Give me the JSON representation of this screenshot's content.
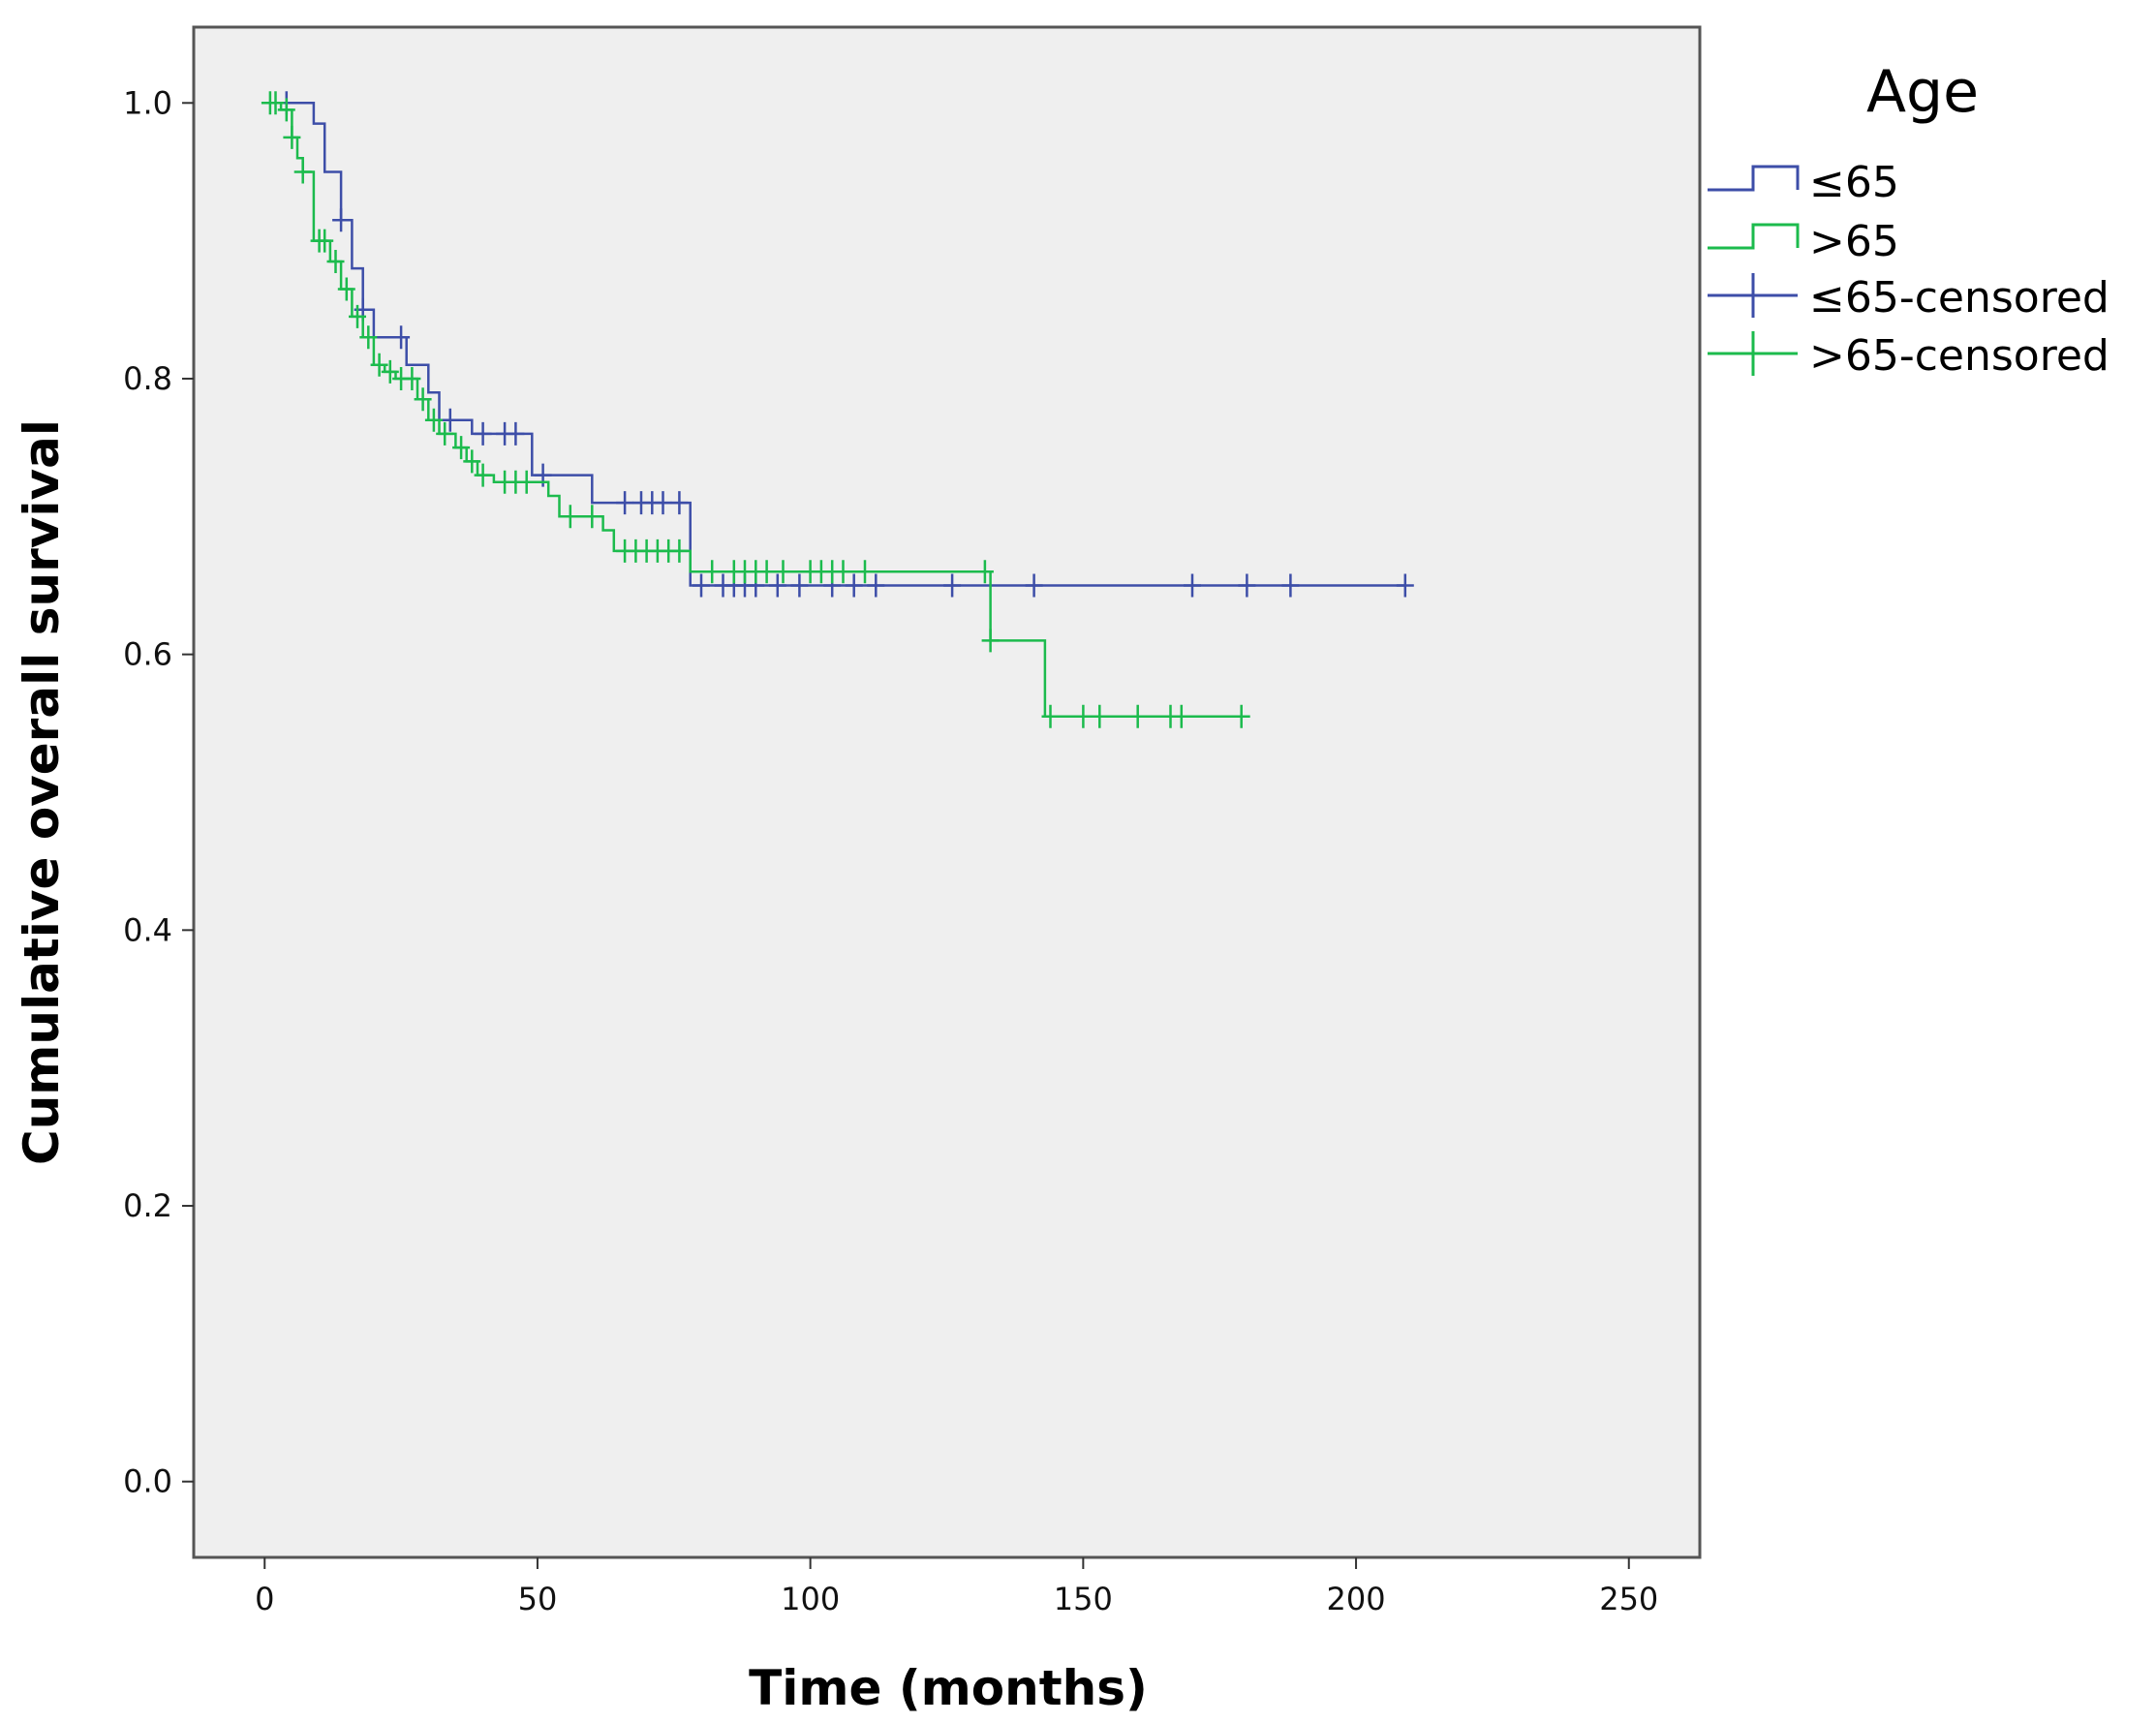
{
  "chart_data": {
    "type": "line",
    "subtype": "kaplan-meier",
    "title": "",
    "xlabel": "Time (months)",
    "ylabel": "Cumulative overall survival",
    "xlim": [
      -13,
      263
    ],
    "ylim": [
      -0.055,
      1.055
    ],
    "xticks": [
      0,
      50,
      100,
      150,
      200,
      250
    ],
    "yticks": [
      0.0,
      0.2,
      0.4,
      0.6,
      0.8,
      1.0
    ],
    "ytick_labels": [
      "0.0",
      "0.2",
      "0.4",
      "0.6",
      "0.8",
      "1.0"
    ],
    "grid": false,
    "legend": {
      "title": "Age",
      "placement": "right",
      "entries": [
        "≤65",
        ">65",
        "≤65-censored",
        ">65-censored"
      ]
    },
    "series": [
      {
        "name": "≤65",
        "color": "#3d4ea8",
        "steps": [
          [
            0,
            1.0
          ],
          [
            9,
            0.985
          ],
          [
            11,
            0.95
          ],
          [
            14,
            0.915
          ],
          [
            16,
            0.88
          ],
          [
            18,
            0.85
          ],
          [
            20,
            0.83
          ],
          [
            24,
            0.83
          ],
          [
            26,
            0.81
          ],
          [
            30,
            0.79
          ],
          [
            32,
            0.77
          ],
          [
            38,
            0.76
          ],
          [
            49,
            0.73
          ],
          [
            60,
            0.71
          ],
          [
            78,
            0.65
          ],
          [
            209,
            0.65
          ]
        ],
        "censored": [
          [
            4,
            1.0
          ],
          [
            14,
            0.915
          ],
          [
            18,
            0.85
          ],
          [
            25,
            0.83
          ],
          [
            34,
            0.77
          ],
          [
            40,
            0.76
          ],
          [
            44,
            0.76
          ],
          [
            46,
            0.76
          ],
          [
            51,
            0.73
          ],
          [
            66,
            0.71
          ],
          [
            69,
            0.71
          ],
          [
            71,
            0.71
          ],
          [
            73,
            0.71
          ],
          [
            76,
            0.71
          ],
          [
            80,
            0.65
          ],
          [
            84,
            0.65
          ],
          [
            86,
            0.65
          ],
          [
            88,
            0.65
          ],
          [
            90,
            0.65
          ],
          [
            94,
            0.65
          ],
          [
            98,
            0.65
          ],
          [
            104,
            0.65
          ],
          [
            108,
            0.65
          ],
          [
            112,
            0.65
          ],
          [
            126,
            0.65
          ],
          [
            141,
            0.65
          ],
          [
            170,
            0.65
          ],
          [
            180,
            0.65
          ],
          [
            188,
            0.65
          ],
          [
            209,
            0.65
          ]
        ]
      },
      {
        "name": ">65",
        "color": "#1cbb4d",
        "steps": [
          [
            0,
            1.0
          ],
          [
            3,
            0.995
          ],
          [
            5,
            0.975
          ],
          [
            6,
            0.96
          ],
          [
            7,
            0.95
          ],
          [
            9,
            0.9
          ],
          [
            12,
            0.885
          ],
          [
            14,
            0.865
          ],
          [
            16,
            0.845
          ],
          [
            18,
            0.83
          ],
          [
            20,
            0.81
          ],
          [
            22,
            0.805
          ],
          [
            24,
            0.8
          ],
          [
            28,
            0.785
          ],
          [
            30,
            0.77
          ],
          [
            32,
            0.76
          ],
          [
            35,
            0.75
          ],
          [
            37,
            0.74
          ],
          [
            39,
            0.73
          ],
          [
            42,
            0.725
          ],
          [
            52,
            0.715
          ],
          [
            54,
            0.7
          ],
          [
            62,
            0.69
          ],
          [
            64,
            0.675
          ],
          [
            78,
            0.66
          ],
          [
            133,
            0.61
          ],
          [
            143,
            0.555
          ],
          [
            180,
            0.555
          ]
        ],
        "censored": [
          [
            1,
            1.0
          ],
          [
            2,
            1.0
          ],
          [
            4,
            0.995
          ],
          [
            5,
            0.975
          ],
          [
            7,
            0.95
          ],
          [
            10,
            0.9
          ],
          [
            11,
            0.9
          ],
          [
            13,
            0.885
          ],
          [
            15,
            0.865
          ],
          [
            17,
            0.845
          ],
          [
            19,
            0.83
          ],
          [
            21,
            0.81
          ],
          [
            23,
            0.805
          ],
          [
            25,
            0.8
          ],
          [
            27,
            0.8
          ],
          [
            29,
            0.785
          ],
          [
            31,
            0.77
          ],
          [
            33,
            0.76
          ],
          [
            36,
            0.75
          ],
          [
            38,
            0.74
          ],
          [
            40,
            0.73
          ],
          [
            44,
            0.725
          ],
          [
            46,
            0.725
          ],
          [
            48,
            0.725
          ],
          [
            56,
            0.7
          ],
          [
            60,
            0.7
          ],
          [
            66,
            0.675
          ],
          [
            68,
            0.675
          ],
          [
            70,
            0.675
          ],
          [
            72,
            0.675
          ],
          [
            74,
            0.675
          ],
          [
            76,
            0.675
          ],
          [
            82,
            0.66
          ],
          [
            86,
            0.66
          ],
          [
            88,
            0.66
          ],
          [
            90,
            0.66
          ],
          [
            92,
            0.66
          ],
          [
            95,
            0.66
          ],
          [
            100,
            0.66
          ],
          [
            102,
            0.66
          ],
          [
            104,
            0.66
          ],
          [
            106,
            0.66
          ],
          [
            110,
            0.66
          ],
          [
            132,
            0.66
          ],
          [
            133,
            0.61
          ],
          [
            144,
            0.555
          ],
          [
            150,
            0.555
          ],
          [
            153,
            0.555
          ],
          [
            160,
            0.555
          ],
          [
            166,
            0.555
          ],
          [
            168,
            0.555
          ],
          [
            179,
            0.555
          ]
        ]
      }
    ]
  }
}
